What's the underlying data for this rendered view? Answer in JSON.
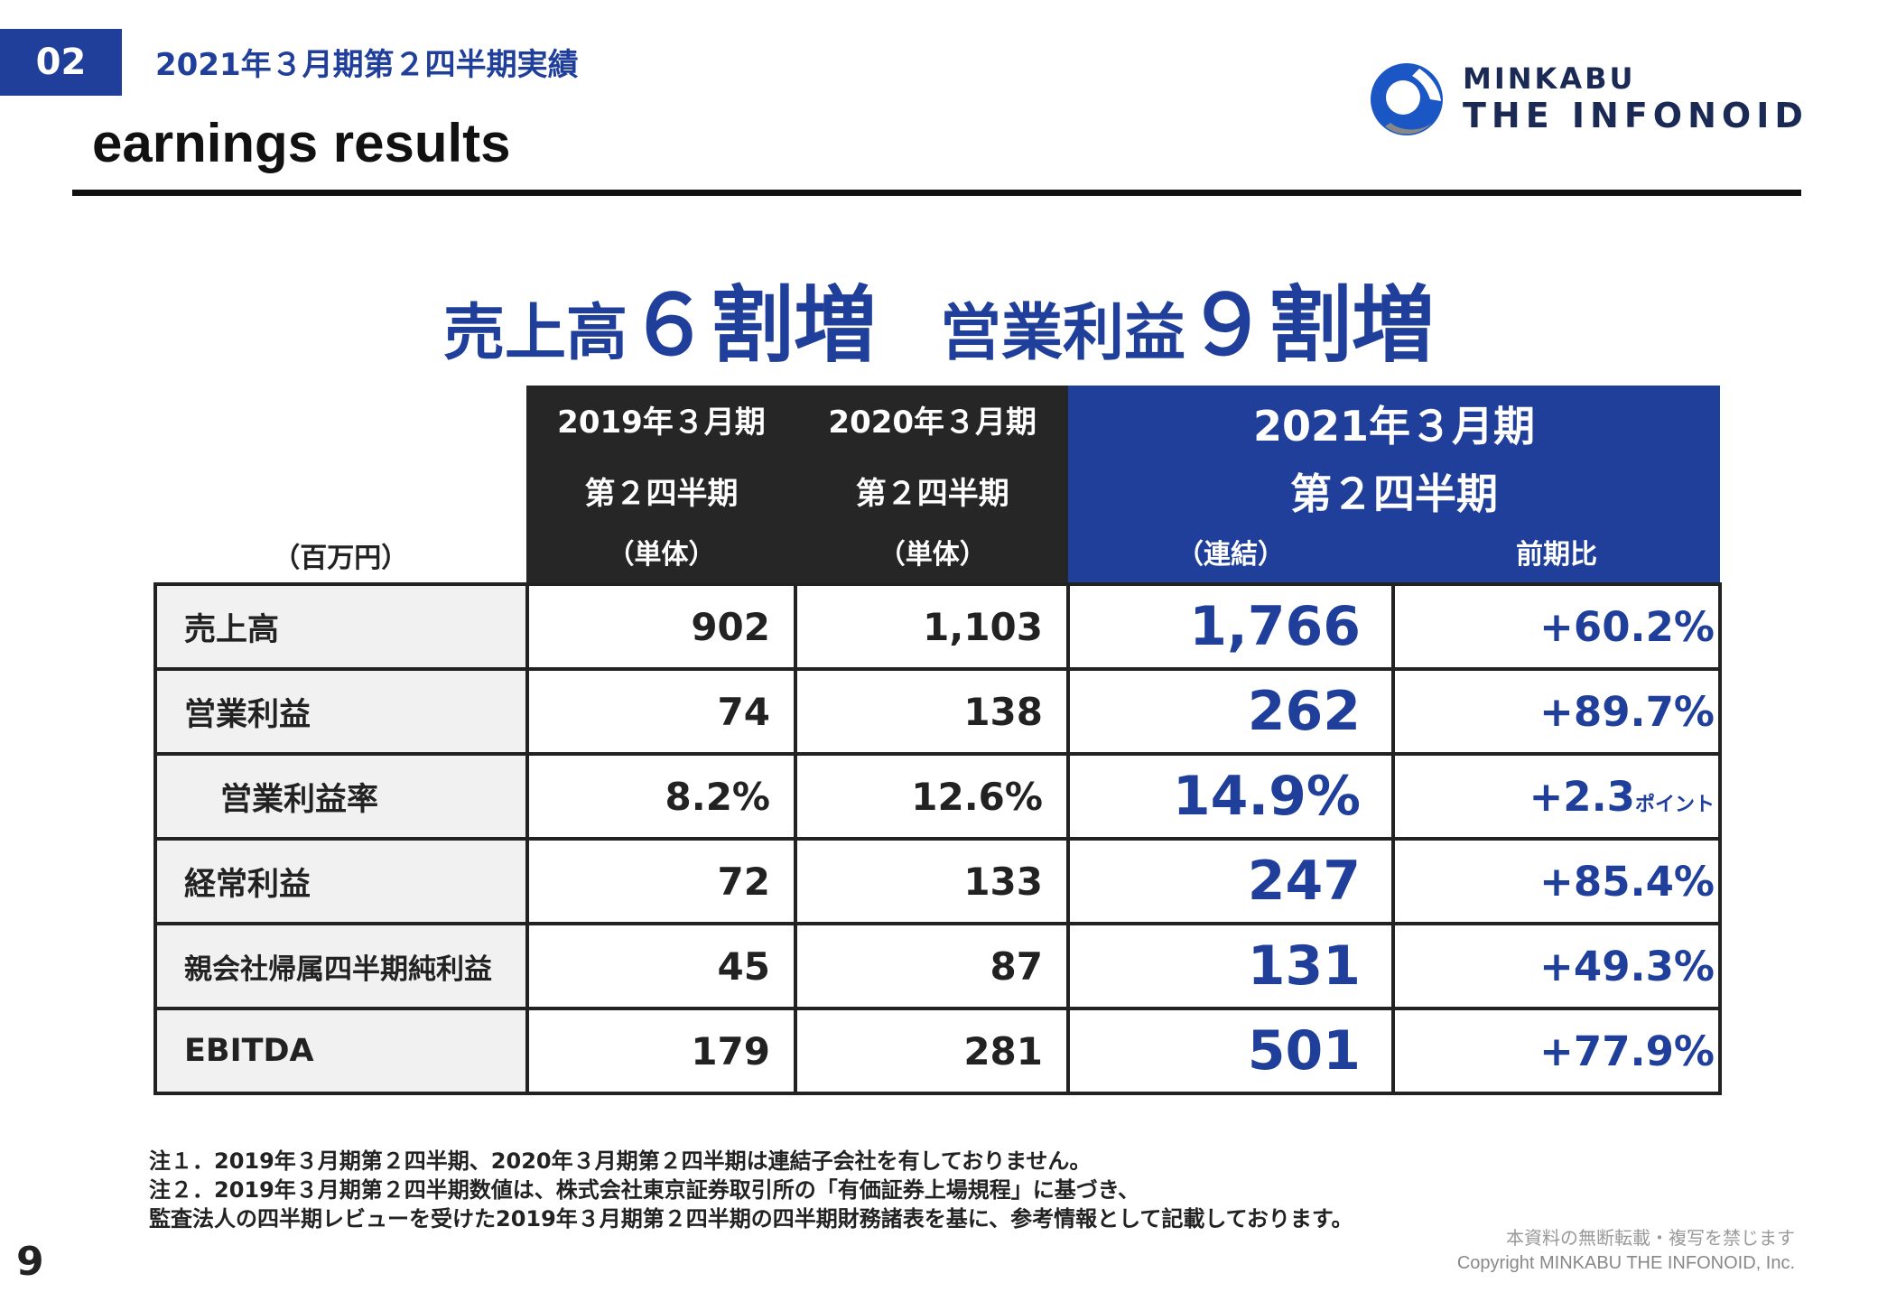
{
  "section_number": "02",
  "header_title": "2021年３月期第２四半期実績",
  "page_heading": "earnings results",
  "logo": {
    "line1": "MINKABU",
    "line2": "THE INFONOID"
  },
  "headline": {
    "part1_label": "売上高",
    "part1_value": "６割増",
    "part2_label": "営業利益",
    "part2_value": "９割増"
  },
  "table": {
    "unit": "（百万円）",
    "columns": [
      {
        "line1": "2019年３月期",
        "line2": "第２四半期",
        "line3": "（単体）"
      },
      {
        "line1": "2020年３月期",
        "line2": "第２四半期",
        "line3": "（単体）"
      }
    ],
    "current_column": {
      "line1": "2021年３月期",
      "line2": "第２四半期",
      "sub1": "（連結）",
      "sub2": "前期比"
    },
    "rows": [
      {
        "label": "売上高",
        "v2019": "902",
        "v2020": "1,103",
        "v2021": "1,766",
        "change": "+60.2%"
      },
      {
        "label": "営業利益",
        "v2019": "74",
        "v2020": "138",
        "v2021": "262",
        "change": "+89.7%"
      },
      {
        "label": "営業利益率",
        "v2019": "8.2%",
        "v2020": "12.6%",
        "v2021": "14.9%",
        "change": "+2.3",
        "change_unit": "ポイント"
      },
      {
        "label": "経常利益",
        "v2019": "72",
        "v2020": "133",
        "v2021": "247",
        "change": "+85.4%"
      },
      {
        "label": "親会社帰属四半期純利益",
        "v2019": "45",
        "v2020": "87",
        "v2021": "131",
        "change": "+49.3%"
      },
      {
        "label": "EBITDA",
        "v2019": "179",
        "v2020": "281",
        "v2021": "501",
        "change": "+77.9%"
      }
    ]
  },
  "notes": [
    "注１．2019年３月期第２四半期、2020年３月期第２四半期は連結子会社を有しておりません。",
    "注２．2019年３月期第２四半期数値は、株式会社東京証券取引所の「有価証券上場規程」に基づき、",
    "監査法人の四半期レビューを受けた2019年３月期第２四半期の四半期財務諸表を基に、参考情報として記載しております。"
  ],
  "copyright_notice": "本資料の無断転載・複写を禁じます",
  "copyright": "Copyright MINKABU THE INFONOID, Inc.",
  "page_number": "9",
  "colors": {
    "brand_blue": "#1f3f9a",
    "dark_header": "#262626",
    "label_bg": "#f1f1f1"
  }
}
